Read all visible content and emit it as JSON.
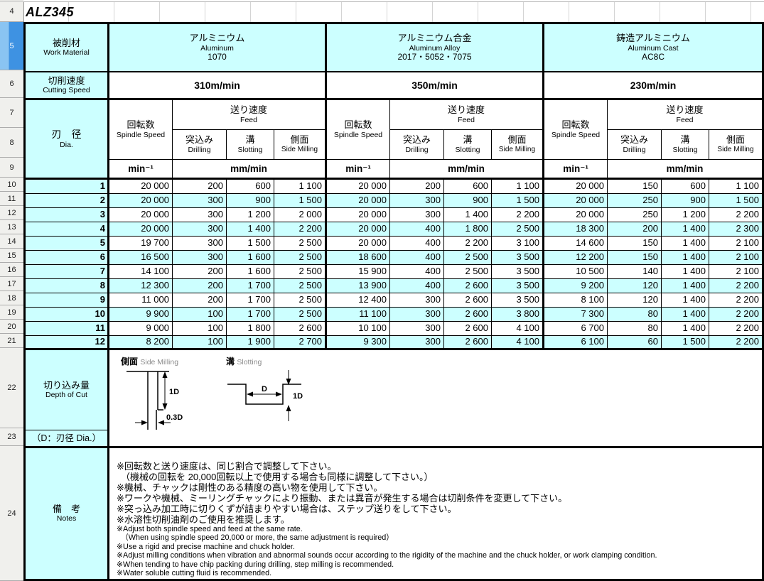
{
  "sheet": {
    "title": "ALZ345",
    "row_numbers": [
      "4",
      "5",
      "6",
      "7",
      "8",
      "9",
      "10",
      "11",
      "12",
      "13",
      "14",
      "15",
      "16",
      "17",
      "18",
      "19",
      "20",
      "21",
      "22",
      "23",
      "24"
    ],
    "selected_row": "5"
  },
  "labels": {
    "work_material_jp": "被削材",
    "work_material_en": "Work Material",
    "cutting_speed_jp": "切削速度",
    "cutting_speed_en": "Cutting Speed",
    "dia_jp": "刃　径",
    "dia_en": "Dia.",
    "spindle_jp": "回転数",
    "spindle_en": "Spindle Speed",
    "feed_jp": "送り速度",
    "feed_en": "Feed",
    "drilling_jp": "突込み",
    "drilling_en": "Drilling",
    "slotting_jp": "溝",
    "slotting_en": "Slotting",
    "side_jp": "側面",
    "side_en": "Side Milling",
    "unit_spindle": "min⁻¹",
    "unit_feed": "mm/min",
    "depth_jp": "切り込み量",
    "depth_en": "Depth of Cut",
    "depth_note": "（D：刃径 Dia.）",
    "notes_jp": "備　考",
    "notes_en": "Notes",
    "diag_side_jp": "側面",
    "diag_side_en": "Side Milling",
    "diag_slot_jp": "溝",
    "diag_slot_en": "Slotting",
    "dim_1d_side": "1D",
    "dim_03d": "0.3D",
    "dim_d": "D",
    "dim_1d_slot": "1D"
  },
  "materials": [
    {
      "name_jp": "アルミニウム",
      "name_en": "Aluminum",
      "grade": "1070",
      "cutting_speed": "310m/min"
    },
    {
      "name_jp": "アルミニウム合金",
      "name_en": "Aluminum Alloy",
      "grade": "2017・5052・7075",
      "cutting_speed": "350m/min"
    },
    {
      "name_jp": "鋳造アルミニウム",
      "name_en": "Aluminum Cast",
      "grade": "AC8C",
      "cutting_speed": "230m/min"
    }
  ],
  "chart_data": {
    "type": "table",
    "title": "ALZ345 cutting conditions",
    "column_groups": [
      "Aluminum 1070",
      "Aluminum Alloy 2017・5052・7075",
      "Aluminum Cast AC8C"
    ],
    "columns_per_group": [
      "Spindle Speed min⁻¹",
      "Drilling mm/min",
      "Slotting mm/min",
      "Side Milling mm/min"
    ],
    "rows": [
      {
        "dia": "1",
        "g1": [
          "20 000",
          "200",
          "600",
          "1 100"
        ],
        "g2": [
          "20 000",
          "200",
          "600",
          "1 100"
        ],
        "g3": [
          "20 000",
          "150",
          "600",
          "1 100"
        ]
      },
      {
        "dia": "2",
        "g1": [
          "20 000",
          "300",
          "900",
          "1 500"
        ],
        "g2": [
          "20 000",
          "300",
          "900",
          "1 500"
        ],
        "g3": [
          "20 000",
          "250",
          "900",
          "1 500"
        ]
      },
      {
        "dia": "3",
        "g1": [
          "20 000",
          "300",
          "1 200",
          "2 000"
        ],
        "g2": [
          "20 000",
          "300",
          "1 400",
          "2 200"
        ],
        "g3": [
          "20 000",
          "250",
          "1 200",
          "2 200"
        ]
      },
      {
        "dia": "4",
        "g1": [
          "20 000",
          "300",
          "1 400",
          "2 200"
        ],
        "g2": [
          "20 000",
          "400",
          "1 800",
          "2 500"
        ],
        "g3": [
          "18 300",
          "200",
          "1 400",
          "2 300"
        ]
      },
      {
        "dia": "5",
        "g1": [
          "19 700",
          "300",
          "1 500",
          "2 500"
        ],
        "g2": [
          "20 000",
          "400",
          "2 200",
          "3 100"
        ],
        "g3": [
          "14 600",
          "150",
          "1 400",
          "2 100"
        ]
      },
      {
        "dia": "6",
        "g1": [
          "16 500",
          "300",
          "1 600",
          "2 500"
        ],
        "g2": [
          "18 600",
          "400",
          "2 500",
          "3 500"
        ],
        "g3": [
          "12 200",
          "150",
          "1 400",
          "2 100"
        ]
      },
      {
        "dia": "7",
        "g1": [
          "14 100",
          "200",
          "1 600",
          "2 500"
        ],
        "g2": [
          "15 900",
          "400",
          "2 500",
          "3 500"
        ],
        "g3": [
          "10 500",
          "140",
          "1 400",
          "2 100"
        ]
      },
      {
        "dia": "8",
        "g1": [
          "12 300",
          "200",
          "1 700",
          "2 500"
        ],
        "g2": [
          "13 900",
          "400",
          "2 600",
          "3 500"
        ],
        "g3": [
          "9 200",
          "120",
          "1 400",
          "2 200"
        ]
      },
      {
        "dia": "9",
        "g1": [
          "11 000",
          "200",
          "1 700",
          "2 500"
        ],
        "g2": [
          "12 400",
          "300",
          "2 600",
          "3 500"
        ],
        "g3": [
          "8 100",
          "120",
          "1 400",
          "2 200"
        ]
      },
      {
        "dia": "10",
        "g1": [
          "9 900",
          "100",
          "1 700",
          "2 500"
        ],
        "g2": [
          "11 100",
          "300",
          "2 600",
          "3 800"
        ],
        "g3": [
          "7 300",
          "80",
          "1 400",
          "2 200"
        ]
      },
      {
        "dia": "11",
        "g1": [
          "9 000",
          "100",
          "1 800",
          "2 600"
        ],
        "g2": [
          "10 100",
          "300",
          "2 600",
          "4 100"
        ],
        "g3": [
          "6 700",
          "80",
          "1 400",
          "2 200"
        ]
      },
      {
        "dia": "12",
        "g1": [
          "8 200",
          "100",
          "1 900",
          "2 700"
        ],
        "g2": [
          "9 300",
          "300",
          "2 600",
          "4 100"
        ],
        "g3": [
          "6 100",
          "60",
          "1 500",
          "2 200"
        ]
      }
    ]
  },
  "notes": {
    "jp_lines": [
      {
        "text": "※回転数と送り速度は、同じ割合で調整して下さい。",
        "indent": false
      },
      {
        "text": "（機械の回転を 20,000回転以上で使用する場合も同様に調整して下さい。）",
        "indent": true
      },
      {
        "text": "※機械、チャックは剛性のある精度の高い物を使用して下さい。",
        "indent": false
      },
      {
        "text": "※ワークや機械、ミーリングチャックにより振動、または異音が発生する場合は切削条件を変更して下さい。",
        "indent": false
      },
      {
        "text": "※突っ込み加工時に切りくずが詰まりやすい場合は、ステップ送りをして下さい。",
        "indent": false
      },
      {
        "text": "※水溶性切削油剤のご使用を推奨します。",
        "indent": false
      }
    ],
    "en_lines": [
      {
        "text": "※Adjust both spindle speed and feed at the same rate.",
        "indent": false
      },
      {
        "text": "（When using spindle speed 20,000 or more, the same adjustment is required）",
        "indent": true
      },
      {
        "text": "※Use a rigid and precise machine and chuck holder.",
        "indent": false
      },
      {
        "text": "※Adjust milling conditions when vibration and abnormal sounds occur according to the rigidity of the machine and the chuck holder, or work clamping condition.",
        "indent": false
      },
      {
        "text": "※When tending to have chip packing during drilling, step milling is recommended.",
        "indent": false
      },
      {
        "text": "※Water soluble cutting fluid is recommended.",
        "indent": false
      }
    ]
  },
  "colors": {
    "header_fill": "#CCFFFF",
    "alt_row_fill": "#CCFFFF",
    "selected_row_blue": "#3E92E2",
    "gutter_gray": "#F0F0ED",
    "border_black": "#000000"
  }
}
